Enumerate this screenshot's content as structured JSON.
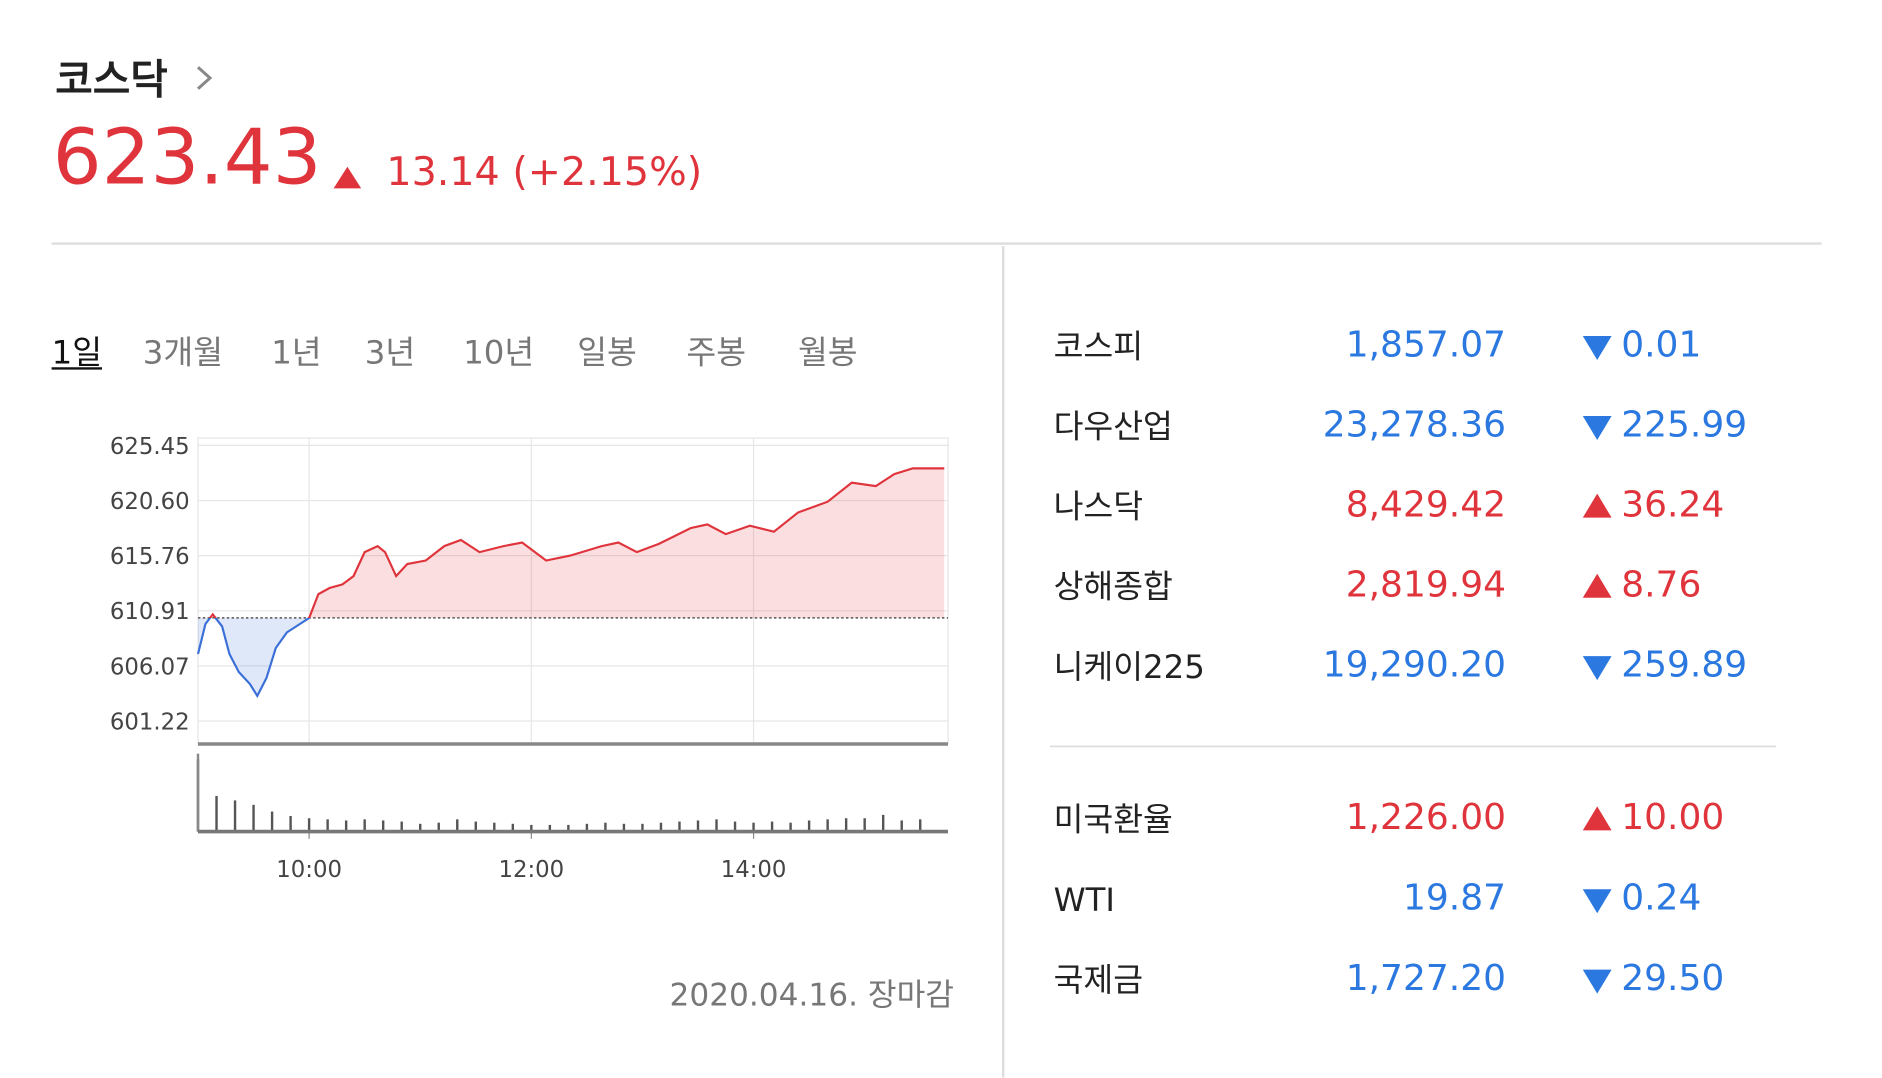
{
  "header": {
    "title": "코스닥",
    "value": "623.43",
    "change": "13.14 (+2.15%)",
    "direction": "up"
  },
  "tabs": [
    {
      "label": "1일",
      "selected": true
    },
    {
      "label": "3개월",
      "selected": false
    },
    {
      "label": "1년",
      "selected": false
    },
    {
      "label": "3년",
      "selected": false
    },
    {
      "label": "10년",
      "selected": false
    },
    {
      "label": "일봉",
      "selected": false
    },
    {
      "label": "주봉",
      "selected": false
    },
    {
      "label": "월봉",
      "selected": false
    }
  ],
  "chart_data": {
    "type": "line",
    "x": [
      540,
      544,
      548,
      553,
      557,
      562,
      568,
      572,
      577,
      582,
      588,
      595,
      600,
      605,
      611,
      618,
      624,
      630,
      637,
      641,
      647,
      653,
      663,
      673,
      682,
      692,
      705,
      715,
      728,
      741,
      758,
      767,
      777,
      789,
      806,
      815,
      825,
      838,
      851,
      864,
      880,
      893,
      906,
      916,
      926,
      943
    ],
    "values": [
      607.11,
      609.75,
      610.59,
      609.54,
      607.11,
      605.53,
      604.48,
      603.43,
      605.01,
      607.64,
      609.01,
      609.75,
      610.28,
      612.38,
      612.91,
      613.23,
      613.96,
      616.07,
      616.6,
      616.07,
      613.96,
      615.02,
      615.33,
      616.6,
      617.13,
      616.07,
      616.6,
      616.91,
      615.33,
      615.76,
      616.6,
      616.91,
      616.07,
      616.81,
      618.18,
      618.5,
      617.65,
      618.39,
      617.86,
      619.55,
      620.5,
      622.18,
      621.87,
      622.92,
      623.43,
      623.43
    ],
    "baseline": 610.29,
    "xlim": [
      540,
      945
    ],
    "ylim": [
      599.2,
      626.1
    ],
    "xticks": [
      {
        "value": 600,
        "label": "10:00"
      },
      {
        "value": 720,
        "label": "12:00"
      },
      {
        "value": 840,
        "label": "14:00"
      }
    ],
    "yticks": [
      625.45,
      {
        "value": 620.6,
        "label": "620.60"
      },
      615.76,
      610.91,
      606.07,
      601.22
    ],
    "grid": true,
    "up_color": "#e0343c",
    "down_color": "#3a6fd8",
    "volume": {
      "x": [
        540,
        550,
        560,
        570,
        580,
        590,
        600,
        610,
        620,
        630,
        640,
        650,
        660,
        670,
        680,
        690,
        700,
        710,
        720,
        730,
        740,
        750,
        760,
        770,
        780,
        790,
        800,
        810,
        820,
        830,
        840,
        850,
        860,
        870,
        880,
        890,
        900,
        910,
        920,
        930
      ],
      "values": [
        65,
        32,
        28,
        24,
        18,
        14,
        12,
        11,
        10,
        11,
        10,
        9,
        7,
        8,
        11,
        9,
        8,
        7,
        6,
        6,
        6,
        7,
        8,
        7,
        7,
        8,
        9,
        10,
        11,
        9,
        8,
        9,
        8,
        10,
        11,
        12,
        12,
        15,
        10,
        11
      ],
      "ylim": [
        0,
        70
      ],
      "color": "#555555"
    }
  },
  "date": "2020.04.16. 장마감",
  "indices": [
    {
      "name": "코스피",
      "value": "1,857.07",
      "change": "0.01",
      "direction": "down"
    },
    {
      "name": "다우산업",
      "value": "23,278.36",
      "change": "225.99",
      "direction": "down"
    },
    {
      "name": "나스닥",
      "value": "8,429.42",
      "change": "36.24",
      "direction": "up"
    },
    {
      "name": "상해종합",
      "value": "2,819.94",
      "change": "8.76",
      "direction": "up"
    },
    {
      "name": "니케이225",
      "value": "19,290.20",
      "change": "259.89",
      "direction": "down"
    }
  ],
  "commodities": [
    {
      "name": "미국환율",
      "value": "1,226.00",
      "change": "10.00",
      "direction": "up"
    },
    {
      "name": "WTI",
      "value": "19.87",
      "change": "0.24",
      "direction": "down"
    },
    {
      "name": "국제금",
      "value": "1,727.20",
      "change": "29.50",
      "direction": "down"
    }
  ]
}
